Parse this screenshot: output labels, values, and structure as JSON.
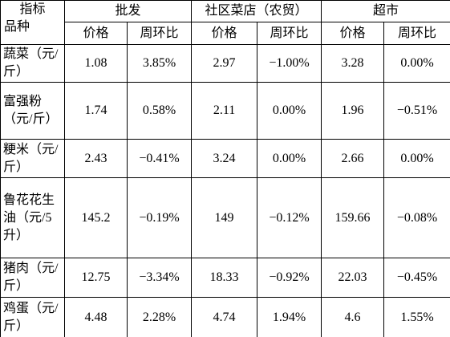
{
  "header": {
    "indicator": "指标",
    "variety": "品种",
    "groups": [
      "批发",
      "社区菜店（农贸）",
      "超市"
    ],
    "subheaders": [
      "价格",
      "周环比",
      "价格",
      "周环比",
      "价格",
      "周环比"
    ]
  },
  "rows": [
    {
      "name": "蔬菜（元/斤）",
      "cells": [
        "1.08",
        "3.85%",
        "2.97",
        "−1.00%",
        "3.28",
        "0.00%"
      ]
    },
    {
      "name": "富强粉（元/斤）",
      "cells": [
        "1.74",
        "0.58%",
        "2.11",
        "0.00%",
        "1.96",
        "−0.51%"
      ]
    },
    {
      "name": "粳米（元/斤）",
      "cells": [
        "2.43",
        "−0.41%",
        "3.24",
        "0.00%",
        "2.66",
        "0.00%"
      ]
    },
    {
      "name": "鲁花花生油（元/5升）",
      "cells": [
        "145.2",
        "−0.19%",
        "149",
        "−0.12%",
        "159.66",
        "−0.08%"
      ]
    },
    {
      "name": "猪肉（元/斤）",
      "cells": [
        "12.75",
        "−3.34%",
        "18.33",
        "−0.92%",
        "22.03",
        "−0.45%"
      ]
    },
    {
      "name": "鸡蛋（元/斤）",
      "cells": [
        "4.48",
        "2.28%",
        "4.74",
        "1.94%",
        "4.6",
        "1.55%"
      ]
    }
  ]
}
